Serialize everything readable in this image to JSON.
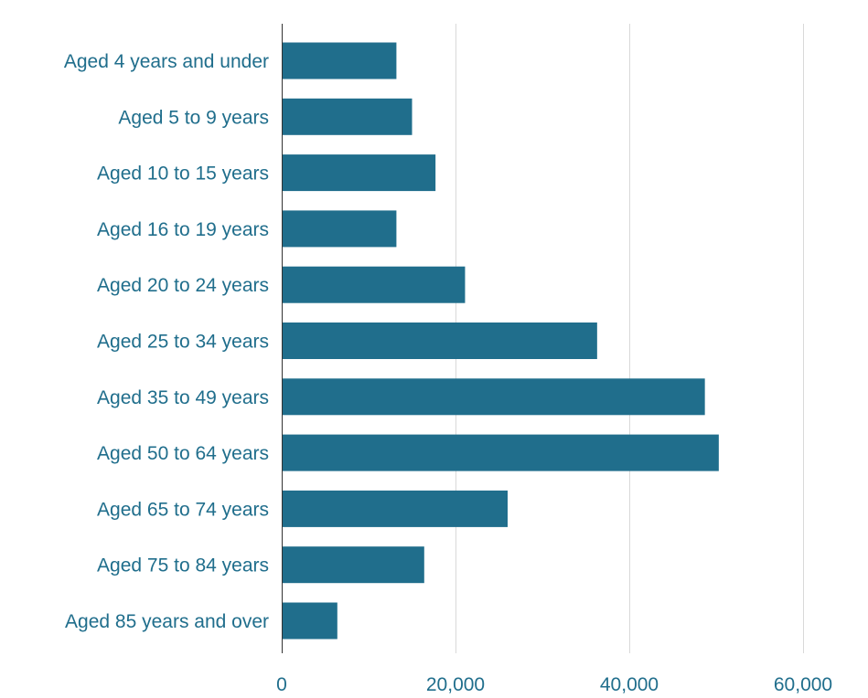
{
  "colors": {
    "bar": "#206e8c",
    "label": "#206e8c",
    "grid": "#d9d9d9",
    "axis": "#333333",
    "background": "#ffffff"
  },
  "chart_data": {
    "type": "bar",
    "orientation": "horizontal",
    "title": "",
    "xlabel": "",
    "ylabel": "",
    "categories": [
      "Aged 4 years and under",
      "Aged 5 to 9 years",
      "Aged 10 to 15 years",
      "Aged 16 to 19 years",
      "Aged 20 to 24 years",
      "Aged 25 to 34 years",
      "Aged 35 to 49 years",
      "Aged 50 to 64 years",
      "Aged 65 to 74 years",
      "Aged 75 to 84 years",
      "Aged 85 years and over"
    ],
    "values": [
      13200,
      15000,
      17700,
      13200,
      21100,
      36300,
      48700,
      50300,
      26000,
      16400,
      6400
    ],
    "xlim": [
      0,
      60000
    ],
    "x_ticks": [
      0,
      20000,
      40000,
      60000
    ],
    "x_tick_labels": [
      "0",
      "20,000",
      "40,000",
      "60,000"
    ],
    "grid": true,
    "legend": "none"
  }
}
